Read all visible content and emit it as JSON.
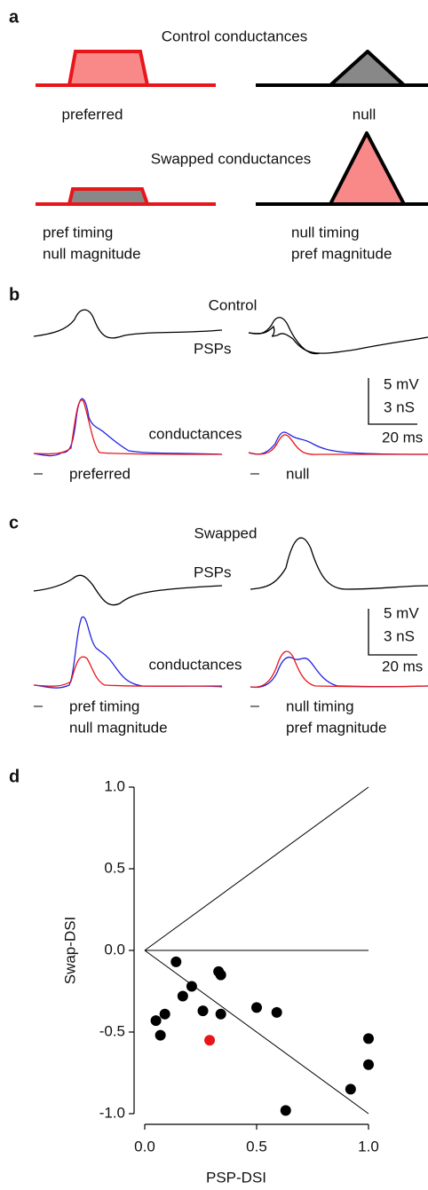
{
  "panels": {
    "a": {
      "label": "a",
      "title": "Control conductances",
      "preferred": "preferred",
      "null": "null",
      "swapped_title": "Swapped conductances",
      "pref_swap": [
        "pref timing",
        "null magnitude"
      ],
      "null_swap": [
        "null timing",
        "pref magnitude"
      ]
    },
    "b": {
      "label": "b",
      "title": "Control",
      "psps": "PSPs",
      "conductances": "conductances",
      "scale": [
        "5 mV",
        "3 nS",
        "20 ms"
      ],
      "left": [
        "preferred"
      ],
      "right": [
        "null"
      ]
    },
    "c": {
      "label": "c",
      "title": "Swapped",
      "psps": "PSPs",
      "conductances": "conductances",
      "scale": [
        "5 mV",
        "3 nS",
        "20 ms"
      ],
      "left": [
        "pref timing",
        "null magnitude"
      ],
      "right": [
        "null timing",
        "pref magnitude"
      ]
    }
  },
  "chart_data": {
    "type": "scatter",
    "panel_label": "d",
    "xlabel": "PSP-DSI",
    "ylabel": "Swap-DSI",
    "xlim": [
      0,
      1
    ],
    "ylim": [
      -1,
      1
    ],
    "xticks": [
      {
        "value": 0,
        "label": "0.0"
      },
      {
        "value": 0.5,
        "label": "0.5"
      },
      {
        "value": 1,
        "label": "1.0"
      }
    ],
    "yticks": [
      {
        "value": -1,
        "label": "-1.0"
      },
      {
        "value": -0.5,
        "label": "-0.5"
      },
      {
        "value": 0,
        "label": "0.0"
      },
      {
        "value": 0.5,
        "label": "0.5"
      },
      {
        "value": 1,
        "label": "1.0"
      }
    ],
    "series": [
      {
        "color": "#000000",
        "x": [
          0.05,
          0.07,
          0.09,
          0.14,
          0.17,
          0.21,
          0.26,
          0.33,
          0.34,
          0.34,
          0.5,
          0.59,
          0.63,
          0.92,
          1.0,
          1.0
        ],
        "values": [
          -0.43,
          -0.52,
          -0.39,
          -0.07,
          -0.28,
          -0.22,
          -0.37,
          -0.13,
          -0.15,
          -0.39,
          -0.35,
          -0.38,
          -0.98,
          -0.85,
          -0.54,
          -0.7
        ]
      },
      {
        "color": "#e8161b",
        "x": [
          0.29
        ],
        "values": [
          -0.55
        ]
      }
    ]
  }
}
